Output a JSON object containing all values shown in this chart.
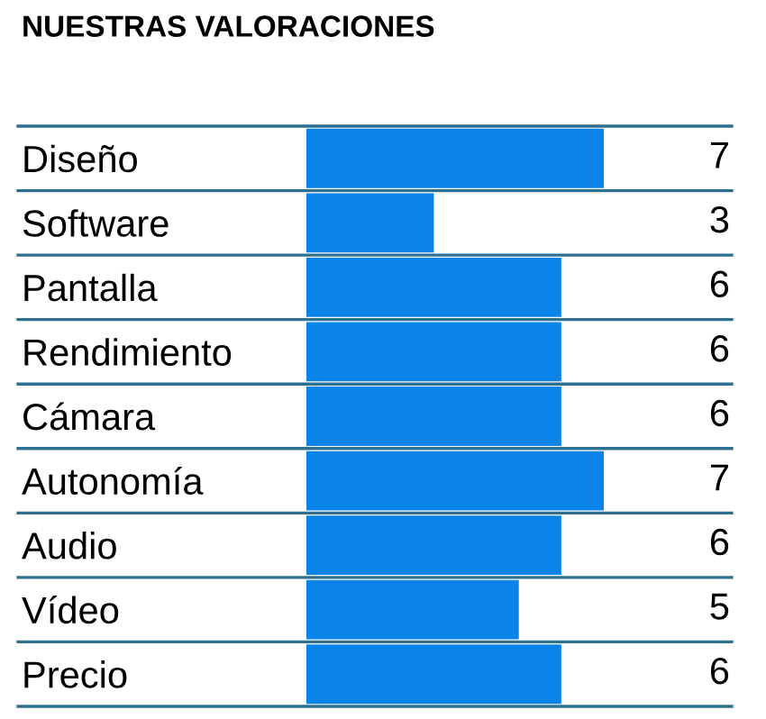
{
  "chart_data": {
    "type": "bar",
    "orientation": "horizontal",
    "title": "NUESTRAS VALORACIONES",
    "categories": [
      "Diseño",
      "Software",
      "Pantalla",
      "Rendimiento",
      "Cámara",
      "Autonomía",
      "Audio",
      "Vídeo",
      "Precio"
    ],
    "values": [
      7,
      3,
      6,
      6,
      6,
      7,
      6,
      5,
      6
    ],
    "color": "#0a84e8",
    "data_labels": true,
    "grid": "y"
  }
}
